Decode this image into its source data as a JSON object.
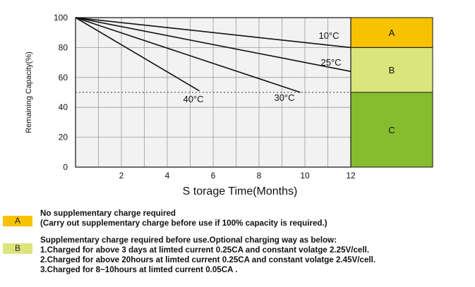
{
  "chart_data": {
    "type": "line",
    "xlabel": "S torage Time(Months)",
    "ylabel": "Remaining Capacity(%)",
    "xlim": [
      0,
      12
    ],
    "ylim": [
      0,
      100
    ],
    "x_ticks": [
      2,
      4,
      6,
      8,
      10,
      12
    ],
    "y_ticks": [
      0,
      20,
      40,
      60,
      80,
      100
    ],
    "grid": true,
    "reference_line": {
      "y": 50,
      "style": "dotted"
    },
    "series": [
      {
        "name": "10°C",
        "x": [
          0,
          12
        ],
        "y": [
          100,
          80
        ]
      },
      {
        "name": "25°C",
        "x": [
          0,
          12
        ],
        "y": [
          100,
          64
        ]
      },
      {
        "name": "30°C",
        "x": [
          0,
          9.8
        ],
        "y": [
          100,
          50
        ]
      },
      {
        "name": "40°C",
        "x": [
          0,
          5.4
        ],
        "y": [
          100,
          51
        ]
      }
    ],
    "zones": [
      {
        "label": "A",
        "from": 80,
        "to": 100,
        "color": "#f7c200"
      },
      {
        "label": "B",
        "from": 50,
        "to": 80,
        "color": "#dbe57c"
      },
      {
        "label": "C",
        "from": 0,
        "to": 50,
        "color": "#86bd2e"
      }
    ]
  },
  "legend": [
    {
      "swatch": "A",
      "color": "#f7c200",
      "lines": [
        "No supplementary charge required",
        "(Carry out supplementary charge before use if 100% capacity is required.)"
      ]
    },
    {
      "swatch": "B",
      "color": "#dbe57c",
      "lines": [
        "Supplementary charge required before use.Optional charging way as below:",
        "1.Charged for above 3 days at limted current 0.25CA and constant volatge 2.25V/cell.",
        "2.Charged for above 20hours at limted current 0.25CA and constant volatge 2.45V/cell.",
        "3.Charged for 8~10hours at limted current 0.05CA ."
      ]
    }
  ]
}
